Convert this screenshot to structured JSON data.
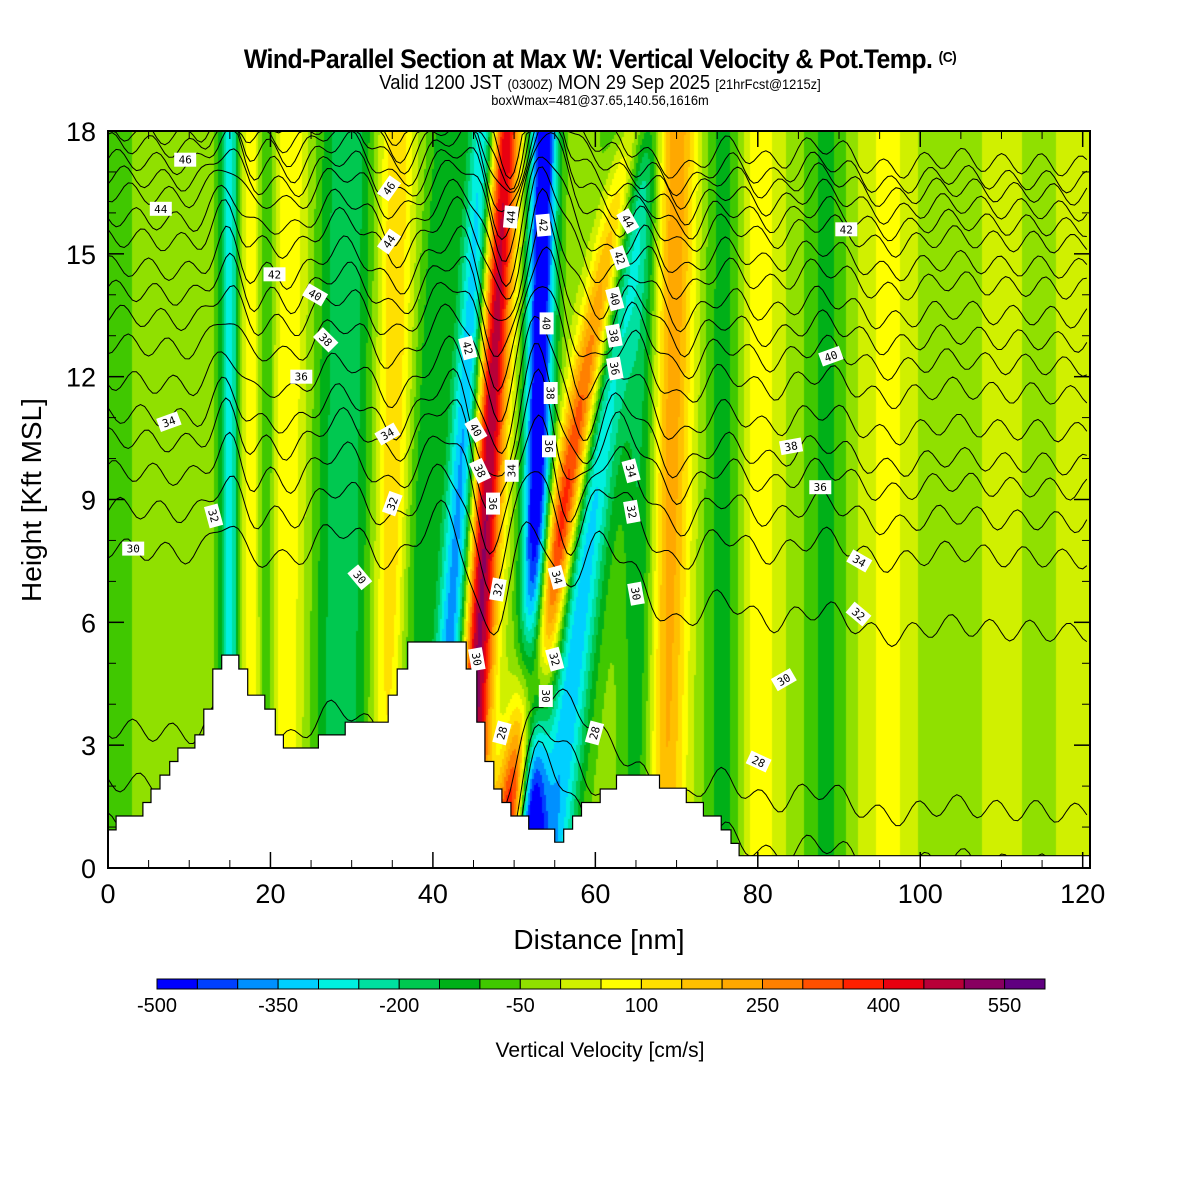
{
  "header": {
    "title": "Wind-Parallel Section at Max W: Vertical Velocity & Pot.Temp.",
    "copyright_mark": "(C)",
    "valid_prefix": "Valid 1200 JST",
    "valid_utc": "(0300Z)",
    "valid_date": "MON 29 Sep 2025",
    "forecast_info": "[21hrFcst@1215z]",
    "box_info": "boxWmax=481@37.65,140.56,1616m"
  },
  "chart_data": {
    "type": "heatmap",
    "title": "Wind-Parallel Section at Max W: Vertical Velocity & Pot.Temp.",
    "xlabel": "Distance [nm]",
    "ylabel": "Height [Kft MSL]",
    "xlim": [
      0,
      120.9
    ],
    "ylim": [
      0,
      18
    ],
    "xticks": [
      0,
      20,
      40,
      60,
      80,
      100,
      120
    ],
    "xtick_labels": [
      "0",
      "20",
      "40",
      "60",
      "80",
      "100",
      "120"
    ],
    "x_minor_step": 5,
    "yticks": [
      0,
      3,
      6,
      9,
      12,
      15,
      18
    ],
    "ytick_labels": [
      "0",
      "3",
      "6",
      "9",
      "12",
      "15",
      "18"
    ],
    "y_minor_step": 1,
    "colorbar": {
      "title": "Vertical Velocity [cm/s]",
      "boundaries": [
        -500,
        -450,
        -400,
        -350,
        -300,
        -250,
        -200,
        -150,
        -100,
        -50,
        0,
        50,
        100,
        150,
        200,
        250,
        300,
        350,
        400,
        450,
        500,
        550,
        600
      ],
      "tick_values": [
        -500,
        -350,
        -200,
        -50,
        100,
        250,
        400,
        550
      ],
      "tick_labels": [
        "-500",
        "-350",
        "-200",
        "-50",
        "100",
        "250",
        "400",
        "550"
      ],
      "colors": [
        "#0000ff",
        "#0040ff",
        "#0090ff",
        "#00d0ff",
        "#00f0e0",
        "#00e0a0",
        "#00c850",
        "#00b018",
        "#40c800",
        "#90e000",
        "#d0f000",
        "#ffff00",
        "#ffe000",
        "#ffc000",
        "#ffa800",
        "#ff8000",
        "#ff5000",
        "#ff2000",
        "#e80010",
        "#b80038",
        "#880060",
        "#600080"
      ]
    },
    "vertical_velocity_bands": [
      {
        "center_nm": 1,
        "tilt_nm_per_kft": 0,
        "width_nm": 5,
        "w_cm_s": -30
      },
      {
        "center_nm": 10,
        "tilt_nm_per_kft": 0,
        "width_nm": 4,
        "w_cm_s": 20
      },
      {
        "center_nm": 15,
        "tilt_nm_per_kft": 0,
        "width_nm": 1.3,
        "w_cm_s": -260
      },
      {
        "center_nm": 17.5,
        "tilt_nm_per_kft": 0,
        "width_nm": 1.5,
        "w_cm_s": 120
      },
      {
        "center_nm": 22,
        "tilt_nm_per_kft": 0.05,
        "width_nm": 2.5,
        "w_cm_s": 120
      },
      {
        "center_nm": 19.5,
        "tilt_nm_per_kft": 0,
        "width_nm": 1.2,
        "w_cm_s": -120
      },
      {
        "center_nm": 29,
        "tilt_nm_per_kft": 0.05,
        "width_nm": 3.5,
        "w_cm_s": -170
      },
      {
        "center_nm": 35,
        "tilt_nm_per_kft": 0.05,
        "width_nm": 2.2,
        "w_cm_s": 180
      },
      {
        "center_nm": 38.5,
        "tilt_nm_per_kft": 0.35,
        "width_nm": 2.2,
        "w_cm_s": -110
      },
      {
        "center_nm": 43.5,
        "tilt_nm_per_kft": 0.35,
        "width_nm": 2.0,
        "w_cm_s": -380
      },
      {
        "center_nm": 46.5,
        "tilt_nm_per_kft": 0.25,
        "width_nm": 2.0,
        "w_cm_s": 560
      },
      {
        "center_nm": 52.8,
        "tilt_nm_per_kft": 0.1,
        "width_nm": 1.7,
        "w_cm_s": -520
      },
      {
        "center_nm": 56.5,
        "tilt_nm_per_kft": 0.9,
        "width_nm": 2.1,
        "w_cm_s": 470
      },
      {
        "center_nm": 59.5,
        "tilt_nm_per_kft": 0.55,
        "width_nm": 2.6,
        "w_cm_s": -320
      },
      {
        "center_nm": 69,
        "tilt_nm_per_kft": 0.1,
        "width_nm": 2.6,
        "w_cm_s": 280
      },
      {
        "center_nm": 66,
        "tilt_nm_per_kft": 0,
        "width_nm": 2.5,
        "w_cm_s": -170
      },
      {
        "center_nm": 76,
        "tilt_nm_per_kft": 0,
        "width_nm": 2.5,
        "w_cm_s": -110
      },
      {
        "center_nm": 80,
        "tilt_nm_per_kft": 0,
        "width_nm": 3,
        "w_cm_s": 110
      },
      {
        "center_nm": 88.5,
        "tilt_nm_per_kft": 0,
        "width_nm": 2.5,
        "w_cm_s": -90
      },
      {
        "center_nm": 96,
        "tilt_nm_per_kft": 0,
        "width_nm": 3.5,
        "w_cm_s": 90
      },
      {
        "center_nm": 103,
        "tilt_nm_per_kft": 0,
        "width_nm": 3,
        "w_cm_s": -20
      },
      {
        "center_nm": 110,
        "tilt_nm_per_kft": 0,
        "width_nm": 3,
        "w_cm_s": 50
      },
      {
        "center_nm": 119,
        "tilt_nm_per_kft": 0,
        "width_nm": 2.5,
        "w_cm_s": 60
      }
    ],
    "background_w_cm_s": -25,
    "terrain_profile_kft": [
      [
        0,
        0.93
      ],
      [
        1,
        0.93
      ],
      [
        1,
        1.27
      ],
      [
        4.3,
        1.27
      ],
      [
        4.3,
        1.6
      ],
      [
        5.3,
        1.6
      ],
      [
        5.3,
        1.93
      ],
      [
        6.4,
        1.93
      ],
      [
        6.4,
        2.27
      ],
      [
        7.6,
        2.27
      ],
      [
        7.6,
        2.6
      ],
      [
        8.6,
        2.6
      ],
      [
        8.6,
        2.93
      ],
      [
        10.7,
        2.93
      ],
      [
        10.7,
        3.25
      ],
      [
        11.8,
        3.25
      ],
      [
        11.8,
        3.88
      ],
      [
        12.9,
        3.88
      ],
      [
        12.9,
        4.86
      ],
      [
        14,
        4.86
      ],
      [
        14,
        5.2
      ],
      [
        16.1,
        5.2
      ],
      [
        16.1,
        4.86
      ],
      [
        17.2,
        4.86
      ],
      [
        17.2,
        4.22
      ],
      [
        19.3,
        4.22
      ],
      [
        19.3,
        3.88
      ],
      [
        20.6,
        3.88
      ],
      [
        20.6,
        3.25
      ],
      [
        21.6,
        3.25
      ],
      [
        21.6,
        2.93
      ],
      [
        25.9,
        2.93
      ],
      [
        25.9,
        3.25
      ],
      [
        29.2,
        3.25
      ],
      [
        29.2,
        3.56
      ],
      [
        34.5,
        3.56
      ],
      [
        34.5,
        4.22
      ],
      [
        35.6,
        4.22
      ],
      [
        35.6,
        4.86
      ],
      [
        36.9,
        4.86
      ],
      [
        36.9,
        5.52
      ],
      [
        44.1,
        5.52
      ],
      [
        44.1,
        4.86
      ],
      [
        45.4,
        4.86
      ],
      [
        45.4,
        3.56
      ],
      [
        46.4,
        3.56
      ],
      [
        46.4,
        2.6
      ],
      [
        47.5,
        2.6
      ],
      [
        47.5,
        1.93
      ],
      [
        48.5,
        1.93
      ],
      [
        48.5,
        1.6
      ],
      [
        49.6,
        1.6
      ],
      [
        49.6,
        1.27
      ],
      [
        51.8,
        1.27
      ],
      [
        51.8,
        0.95
      ],
      [
        55,
        0.95
      ],
      [
        55,
        0.63
      ],
      [
        56.1,
        0.63
      ],
      [
        56.1,
        0.95
      ],
      [
        57.2,
        0.95
      ],
      [
        57.2,
        1.27
      ],
      [
        58.3,
        1.27
      ],
      [
        58.3,
        1.6
      ],
      [
        60.6,
        1.6
      ],
      [
        60.6,
        1.93
      ],
      [
        62.6,
        1.93
      ],
      [
        62.6,
        2.27
      ],
      [
        67.9,
        2.27
      ],
      [
        67.9,
        1.95
      ],
      [
        71.2,
        1.95
      ],
      [
        71.2,
        1.6
      ],
      [
        73.3,
        1.6
      ],
      [
        73.3,
        1.27
      ],
      [
        75.5,
        1.27
      ],
      [
        75.5,
        0.93
      ],
      [
        76.7,
        0.93
      ],
      [
        76.7,
        0.6
      ],
      [
        77.7,
        0.6
      ],
      [
        77.7,
        0.3
      ],
      [
        120.9,
        0.3
      ],
      [
        120.9,
        0
      ]
    ],
    "potential_temperature": {
      "contour_interval": 1,
      "min": 27,
      "max": 47,
      "left_edge_heights_kft": {
        "27": 1.0,
        "28": 2.0,
        "29": 3.3,
        "30": 7.7,
        "31": 8.7,
        "32": 9.6,
        "33": 10.4,
        "34": 11.0,
        "35": 11.8,
        "36": 12.7,
        "37": 13.4,
        "38": 14.0,
        "39": 14.6,
        "40": 15.3,
        "41": 15.8,
        "42": 16.4,
        "43": 16.8,
        "44": 17.2,
        "45": 17.6,
        "46": 17.9,
        "47": 18.3
      },
      "labels": [
        {
          "text": "46",
          "x_nm": 9.5,
          "h_kft": 17.3,
          "angle": 0
        },
        {
          "text": "44",
          "x_nm": 6.5,
          "h_kft": 16.1,
          "angle": 0
        },
        {
          "text": "42",
          "x_nm": 20.5,
          "h_kft": 14.5,
          "angle": 0
        },
        {
          "text": "40",
          "x_nm": 25.5,
          "h_kft": 14.0,
          "angle": 30
        },
        {
          "text": "38",
          "x_nm": 26.8,
          "h_kft": 12.9,
          "angle": 45
        },
        {
          "text": "36",
          "x_nm": 23.8,
          "h_kft": 12.0,
          "angle": 0
        },
        {
          "text": "34",
          "x_nm": 7.5,
          "h_kft": 10.9,
          "angle": -20
        },
        {
          "text": "46",
          "x_nm": 34.6,
          "h_kft": 16.6,
          "angle": -55
        },
        {
          "text": "44",
          "x_nm": 34.6,
          "h_kft": 15.3,
          "angle": -55
        },
        {
          "text": "34",
          "x_nm": 34.4,
          "h_kft": 10.6,
          "angle": -30
        },
        {
          "text": "32",
          "x_nm": 13.0,
          "h_kft": 8.6,
          "angle": 75
        },
        {
          "text": "30",
          "x_nm": 3.1,
          "h_kft": 7.8,
          "angle": 0
        },
        {
          "text": "32",
          "x_nm": 35.0,
          "h_kft": 8.9,
          "angle": -70
        },
        {
          "text": "30",
          "x_nm": 31.0,
          "h_kft": 7.1,
          "angle": 50
        },
        {
          "text": "44",
          "x_nm": 49.6,
          "h_kft": 15.9,
          "angle": -85
        },
        {
          "text": "42",
          "x_nm": 53.6,
          "h_kft": 15.7,
          "angle": 85
        },
        {
          "text": "44",
          "x_nm": 64.0,
          "h_kft": 15.8,
          "angle": 60
        },
        {
          "text": "42",
          "x_nm": 63.0,
          "h_kft": 14.9,
          "angle": 70
        },
        {
          "text": "40",
          "x_nm": 62.4,
          "h_kft": 13.9,
          "angle": 75
        },
        {
          "text": "38",
          "x_nm": 62.3,
          "h_kft": 13.0,
          "angle": 80
        },
        {
          "text": "36",
          "x_nm": 62.4,
          "h_kft": 12.2,
          "angle": 80
        },
        {
          "text": "40",
          "x_nm": 54.0,
          "h_kft": 13.3,
          "angle": 90
        },
        {
          "text": "42",
          "x_nm": 44.3,
          "h_kft": 12.7,
          "angle": 75
        },
        {
          "text": "40",
          "x_nm": 45.3,
          "h_kft": 10.7,
          "angle": 60
        },
        {
          "text": "38",
          "x_nm": 45.8,
          "h_kft": 9.7,
          "angle": 65
        },
        {
          "text": "34",
          "x_nm": 49.7,
          "h_kft": 9.7,
          "angle": -90
        },
        {
          "text": "38",
          "x_nm": 54.5,
          "h_kft": 11.6,
          "angle": 90
        },
        {
          "text": "36",
          "x_nm": 54.3,
          "h_kft": 10.3,
          "angle": 90
        },
        {
          "text": "36",
          "x_nm": 47.4,
          "h_kft": 8.9,
          "angle": 90
        },
        {
          "text": "34",
          "x_nm": 64.4,
          "h_kft": 9.7,
          "angle": 75
        },
        {
          "text": "32",
          "x_nm": 64.5,
          "h_kft": 8.7,
          "angle": 80
        },
        {
          "text": "32",
          "x_nm": 48.0,
          "h_kft": 6.8,
          "angle": -80
        },
        {
          "text": "34",
          "x_nm": 55.3,
          "h_kft": 7.1,
          "angle": 75
        },
        {
          "text": "30",
          "x_nm": 65.0,
          "h_kft": 6.7,
          "angle": 80
        },
        {
          "text": "30",
          "x_nm": 45.4,
          "h_kft": 5.1,
          "angle": 80
        },
        {
          "text": "32",
          "x_nm": 55.0,
          "h_kft": 5.1,
          "angle": 75
        },
        {
          "text": "30",
          "x_nm": 53.9,
          "h_kft": 4.2,
          "angle": 90
        },
        {
          "text": "28",
          "x_nm": 48.5,
          "h_kft": 3.3,
          "angle": -75
        },
        {
          "text": "28",
          "x_nm": 59.9,
          "h_kft": 3.3,
          "angle": -75
        },
        {
          "text": "42",
          "x_nm": 90.9,
          "h_kft": 15.6,
          "angle": 0
        },
        {
          "text": "40",
          "x_nm": 89.0,
          "h_kft": 12.5,
          "angle": -20
        },
        {
          "text": "38",
          "x_nm": 84.1,
          "h_kft": 10.3,
          "angle": -10
        },
        {
          "text": "36",
          "x_nm": 87.7,
          "h_kft": 9.3,
          "angle": 0
        },
        {
          "text": "34",
          "x_nm": 92.5,
          "h_kft": 7.5,
          "angle": 30
        },
        {
          "text": "32",
          "x_nm": 92.4,
          "h_kft": 6.2,
          "angle": 40
        },
        {
          "text": "30",
          "x_nm": 83.2,
          "h_kft": 4.6,
          "angle": -30
        },
        {
          "text": "28",
          "x_nm": 80.1,
          "h_kft": 2.6,
          "angle": 25
        }
      ]
    }
  }
}
